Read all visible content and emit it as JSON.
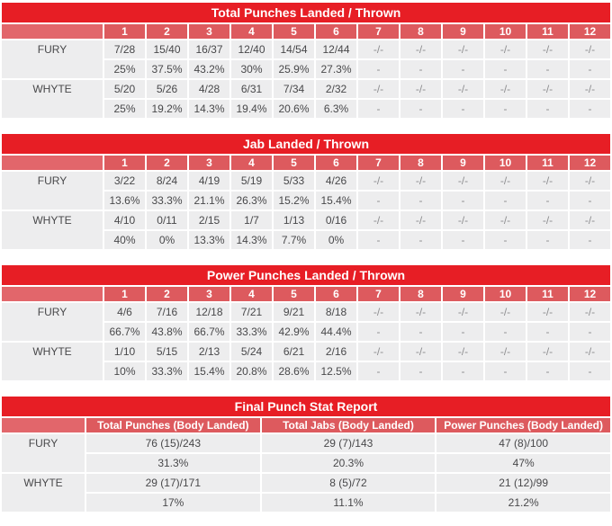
{
  "chart_data": [
    {
      "type": "table",
      "title": "Total Punches Landed / Thrown",
      "columns": [
        "1",
        "2",
        "3",
        "4",
        "5",
        "6",
        "7",
        "8",
        "9",
        "10",
        "11",
        "12"
      ],
      "rows": [
        {
          "fighter": "FURY",
          "values": [
            "7/28",
            "15/40",
            "16/37",
            "12/40",
            "14/54",
            "12/44",
            "-/-",
            "-/-",
            "-/-",
            "-/-",
            "-/-",
            "-/-"
          ],
          "accuracy": [
            "25%",
            "37.5%",
            "43.2%",
            "30%",
            "25.9%",
            "27.3%",
            "-",
            "-",
            "-",
            "-",
            "-",
            "-"
          ]
        },
        {
          "fighter": "WHYTE",
          "values": [
            "5/20",
            "5/26",
            "4/28",
            "6/31",
            "7/34",
            "2/32",
            "-/-",
            "-/-",
            "-/-",
            "-/-",
            "-/-",
            "-/-"
          ],
          "accuracy": [
            "25%",
            "19.2%",
            "14.3%",
            "19.4%",
            "20.6%",
            "6.3%",
            "-",
            "-",
            "-",
            "-",
            "-",
            "-"
          ]
        }
      ]
    },
    {
      "type": "table",
      "title": "Jab Landed / Thrown",
      "columns": [
        "1",
        "2",
        "3",
        "4",
        "5",
        "6",
        "7",
        "8",
        "9",
        "10",
        "11",
        "12"
      ],
      "rows": [
        {
          "fighter": "FURY",
          "values": [
            "3/22",
            "8/24",
            "4/19",
            "5/19",
            "5/33",
            "4/26",
            "-/-",
            "-/-",
            "-/-",
            "-/-",
            "-/-",
            "-/-"
          ],
          "accuracy": [
            "13.6%",
            "33.3%",
            "21.1%",
            "26.3%",
            "15.2%",
            "15.4%",
            "-",
            "-",
            "-",
            "-",
            "-",
            "-"
          ]
        },
        {
          "fighter": "WHYTE",
          "values": [
            "4/10",
            "0/11",
            "2/15",
            "1/7",
            "1/13",
            "0/16",
            "-/-",
            "-/-",
            "-/-",
            "-/-",
            "-/-",
            "-/-"
          ],
          "accuracy": [
            "40%",
            "0%",
            "13.3%",
            "14.3%",
            "7.7%",
            "0%",
            "-",
            "-",
            "-",
            "-",
            "-",
            "-"
          ]
        }
      ]
    },
    {
      "type": "table",
      "title": "Power Punches Landed / Thrown",
      "columns": [
        "1",
        "2",
        "3",
        "4",
        "5",
        "6",
        "7",
        "8",
        "9",
        "10",
        "11",
        "12"
      ],
      "rows": [
        {
          "fighter": "FURY",
          "values": [
            "4/6",
            "7/16",
            "12/18",
            "7/21",
            "9/21",
            "8/18",
            "-/-",
            "-/-",
            "-/-",
            "-/-",
            "-/-",
            "-/-"
          ],
          "accuracy": [
            "66.7%",
            "43.8%",
            "66.7%",
            "33.3%",
            "42.9%",
            "44.4%",
            "-",
            "-",
            "-",
            "-",
            "-",
            "-"
          ]
        },
        {
          "fighter": "WHYTE",
          "values": [
            "1/10",
            "5/15",
            "2/13",
            "5/24",
            "6/21",
            "2/16",
            "-/-",
            "-/-",
            "-/-",
            "-/-",
            "-/-",
            "-/-"
          ],
          "accuracy": [
            "10%",
            "33.3%",
            "15.4%",
            "20.8%",
            "28.6%",
            "12.5%",
            "-",
            "-",
            "-",
            "-",
            "-",
            "-"
          ]
        }
      ]
    },
    {
      "type": "table",
      "title": "Final Punch Stat Report",
      "columns": [
        "Total Punches (Body Landed)",
        "Total Jabs (Body Landed)",
        "Power Punches (Body Landed)"
      ],
      "rows": [
        {
          "fighter": "FURY",
          "values": [
            "76 (15)/243",
            "29 (7)/143",
            "47 (8)/100"
          ],
          "accuracy": [
            "31.3%",
            "20.3%",
            "47%"
          ]
        },
        {
          "fighter": "WHYTE",
          "values": [
            "29 (17)/171",
            "8 (5)/72",
            "21 (12)/99"
          ],
          "accuracy": [
            "17%",
            "11.1%",
            "21.2%"
          ]
        }
      ]
    }
  ],
  "colors": {
    "title_bar": "#e71e25",
    "header_cell": "#dd5a5e",
    "header_name_cell": "#e2666b",
    "row_bg": "#ededee",
    "text": "#48484a",
    "muted_text": "#8e8e90",
    "header_text": "#ffffff"
  }
}
